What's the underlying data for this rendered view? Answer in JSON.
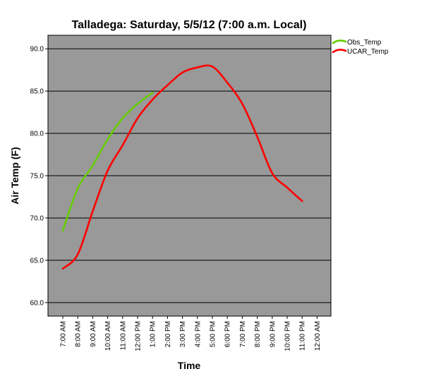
{
  "chart_data": {
    "type": "line",
    "title": "Talladega: Saturday, 5/5/12 (7:00 a.m. Local)",
    "xlabel": "Time",
    "ylabel": "Air Temp (F)",
    "categories": [
      "7:00 AM",
      "8:00 AM",
      "9:00 AM",
      "10:00 AM",
      "11:00 AM",
      "12:00 PM",
      "1:00 PM",
      "2:00 PM",
      "3:00 PM",
      "4:00 PM",
      "5:00 PM",
      "6:00 PM",
      "7:00 PM",
      "8:00 PM",
      "9:00 PM",
      "10:00 PM",
      "11:00 PM",
      "12:00 AM"
    ],
    "yticks": [
      "60.0",
      "65.0",
      "70.0",
      "75.0",
      "80.0",
      "85.0",
      "90.0"
    ],
    "ylim": [
      58.4,
      91.6
    ],
    "grid": "horizontal",
    "legend_position": "top-right",
    "background": "#999999",
    "series": [
      {
        "name": "Obs_Temp",
        "color": "#66cc00",
        "values": [
          68.5,
          73.5,
          76.2,
          79.3,
          81.8,
          83.5,
          84.8,
          null,
          null,
          null,
          null,
          null,
          null,
          null,
          null,
          null,
          null,
          null
        ]
      },
      {
        "name": "UCAR_Temp",
        "color": "#ff0000",
        "values": [
          64.0,
          65.7,
          70.8,
          75.6,
          78.6,
          81.8,
          84.0,
          85.7,
          87.2,
          87.8,
          87.9,
          86.0,
          83.5,
          79.6,
          75.3,
          73.6,
          72.0,
          null
        ]
      }
    ]
  }
}
